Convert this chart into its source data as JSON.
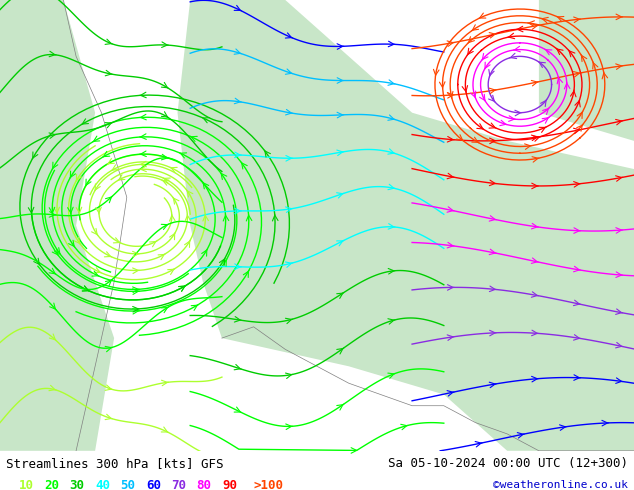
{
  "title_left": "Streamlines 300 hPa [kts] GFS",
  "title_right": "Sa 05-10-2024 00:00 UTC (12+300)",
  "watermark": "©weatheronline.co.uk",
  "legend_values": [
    "10",
    "20",
    "30",
    "40",
    "50",
    "60",
    "70",
    "80",
    "90",
    ">100"
  ],
  "legend_colors": [
    "#adff2f",
    "#00ff00",
    "#00cc00",
    "#00ffff",
    "#00bfff",
    "#0000ff",
    "#8a2be2",
    "#ff00ff",
    "#ff0000",
    "#ff4500"
  ],
  "bg_color": "#ffffff",
  "map_bg_land": "#c8e6c8",
  "map_bg_sea": "#ffffff",
  "figsize": [
    6.34,
    4.9
  ],
  "dpi": 100,
  "title_fontsize": 9,
  "legend_fontsize": 9
}
